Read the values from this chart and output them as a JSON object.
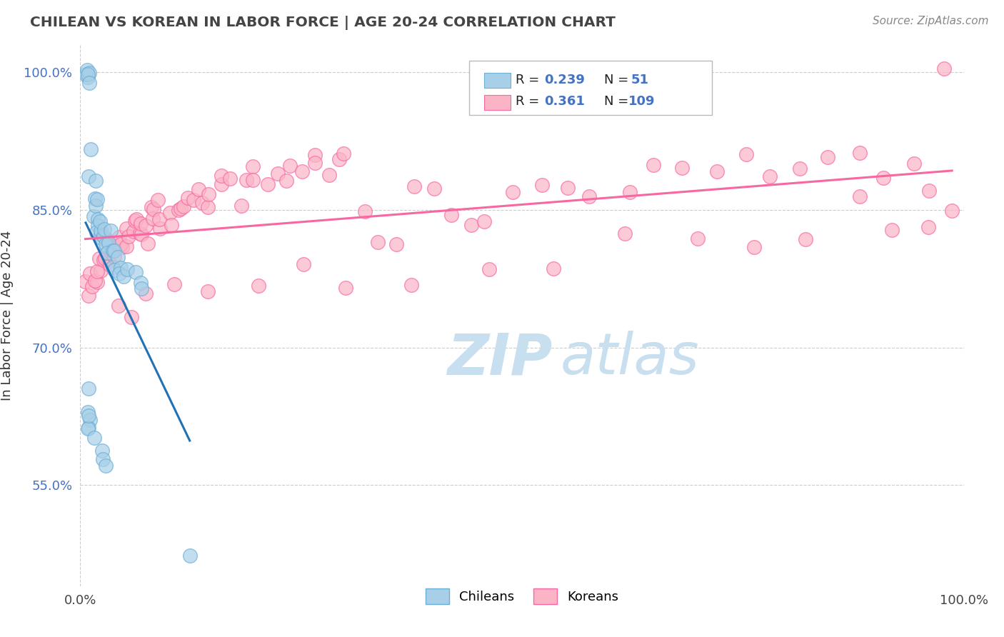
{
  "title": "CHILEAN VS KOREAN IN LABOR FORCE | AGE 20-24 CORRELATION CHART",
  "source": "Source: ZipAtlas.com",
  "ylabel": "In Labor Force | Age 20-24",
  "xlim": [
    0.0,
    1.0
  ],
  "ylim": [
    0.44,
    1.03
  ],
  "yticks": [
    0.55,
    0.7,
    0.85,
    1.0
  ],
  "ytick_labels": [
    "55.0%",
    "70.0%",
    "85.0%",
    "100.0%"
  ],
  "xticks": [
    0.0,
    1.0
  ],
  "xtick_labels": [
    "0.0%",
    "100.0%"
  ],
  "R_chilean": "0.239",
  "N_chilean": "51",
  "R_korean": "0.361",
  "N_korean": "109",
  "chilean_color_face": "#a8cfe8",
  "chilean_color_edge": "#6baed6",
  "korean_color_face": "#fbb4c6",
  "korean_color_edge": "#f768a1",
  "chilean_line_color": "#2171b5",
  "korean_line_color": "#f768a1",
  "watermark_color": "#c8dff0",
  "title_color": "#444444",
  "source_color": "#888888",
  "ylabel_color": "#333333",
  "ytick_color": "#4472c4",
  "legend_box_color": "#eeeeee",
  "r_color": "#4472c4",
  "chilean_x": [
    0.005,
    0.007,
    0.008,
    0.009,
    0.01,
    0.01,
    0.012,
    0.013,
    0.015,
    0.015,
    0.016,
    0.018,
    0.018,
    0.02,
    0.02,
    0.021,
    0.022,
    0.023,
    0.024,
    0.025,
    0.025,
    0.026,
    0.028,
    0.03,
    0.03,
    0.032,
    0.033,
    0.035,
    0.035,
    0.038,
    0.04,
    0.04,
    0.042,
    0.045,
    0.048,
    0.05,
    0.055,
    0.06,
    0.065,
    0.07,
    0.008,
    0.009,
    0.01,
    0.011,
    0.012,
    0.013,
    0.015,
    0.02,
    0.025,
    0.03,
    0.12
  ],
  "chilean_y": [
    0.993,
    0.997,
    1.0,
    1.0,
    1.0,
    1.0,
    0.912,
    0.887,
    0.872,
    0.865,
    0.858,
    0.855,
    0.848,
    0.843,
    0.84,
    0.835,
    0.832,
    0.83,
    0.828,
    0.825,
    0.822,
    0.82,
    0.817,
    0.815,
    0.812,
    0.81,
    0.808,
    0.805,
    0.802,
    0.8,
    0.798,
    0.795,
    0.792,
    0.788,
    0.785,
    0.78,
    0.775,
    0.77,
    0.765,
    0.76,
    0.65,
    0.63,
    0.622,
    0.618,
    0.612,
    0.608,
    0.595,
    0.59,
    0.582,
    0.578,
    0.47
  ],
  "korean_x": [
    0.008,
    0.01,
    0.012,
    0.013,
    0.015,
    0.016,
    0.018,
    0.02,
    0.022,
    0.025,
    0.027,
    0.03,
    0.032,
    0.033,
    0.035,
    0.038,
    0.04,
    0.042,
    0.045,
    0.048,
    0.05,
    0.052,
    0.055,
    0.058,
    0.06,
    0.062,
    0.065,
    0.068,
    0.07,
    0.075,
    0.078,
    0.08,
    0.085,
    0.088,
    0.09,
    0.092,
    0.095,
    0.1,
    0.105,
    0.11,
    0.115,
    0.12,
    0.125,
    0.13,
    0.135,
    0.14,
    0.145,
    0.15,
    0.16,
    0.165,
    0.17,
    0.18,
    0.185,
    0.19,
    0.2,
    0.21,
    0.22,
    0.23,
    0.24,
    0.25,
    0.26,
    0.27,
    0.28,
    0.29,
    0.3,
    0.32,
    0.34,
    0.36,
    0.38,
    0.4,
    0.42,
    0.44,
    0.46,
    0.49,
    0.52,
    0.55,
    0.58,
    0.62,
    0.65,
    0.68,
    0.72,
    0.75,
    0.78,
    0.82,
    0.85,
    0.88,
    0.91,
    0.94,
    0.96,
    0.98,
    0.04,
    0.06,
    0.08,
    0.1,
    0.15,
    0.2,
    0.25,
    0.3,
    0.38,
    0.46,
    0.54,
    0.62,
    0.7,
    0.76,
    0.82,
    0.88,
    0.92,
    0.96,
    0.99
  ],
  "korean_y": [
    0.76,
    0.765,
    0.77,
    0.775,
    0.778,
    0.78,
    0.783,
    0.785,
    0.79,
    0.793,
    0.796,
    0.798,
    0.8,
    0.802,
    0.803,
    0.805,
    0.808,
    0.81,
    0.812,
    0.814,
    0.816,
    0.818,
    0.82,
    0.822,
    0.824,
    0.826,
    0.828,
    0.83,
    0.832,
    0.834,
    0.836,
    0.838,
    0.84,
    0.842,
    0.844,
    0.845,
    0.847,
    0.848,
    0.85,
    0.852,
    0.854,
    0.856,
    0.858,
    0.86,
    0.861,
    0.863,
    0.865,
    0.867,
    0.87,
    0.872,
    0.874,
    0.876,
    0.878,
    0.88,
    0.882,
    0.884,
    0.886,
    0.888,
    0.89,
    0.892,
    0.893,
    0.895,
    0.897,
    0.898,
    0.9,
    0.855,
    0.82,
    0.84,
    0.865,
    0.88,
    0.87,
    0.855,
    0.84,
    0.86,
    0.878,
    0.868,
    0.878,
    0.885,
    0.888,
    0.89,
    0.892,
    0.895,
    0.898,
    0.9,
    0.895,
    0.89,
    0.885,
    0.88,
    0.878,
    1.0,
    0.748,
    0.752,
    0.756,
    0.758,
    0.763,
    0.768,
    0.774,
    0.78,
    0.786,
    0.793,
    0.8,
    0.808,
    0.815,
    0.82,
    0.825,
    0.83,
    0.835,
    0.84,
    0.845
  ]
}
